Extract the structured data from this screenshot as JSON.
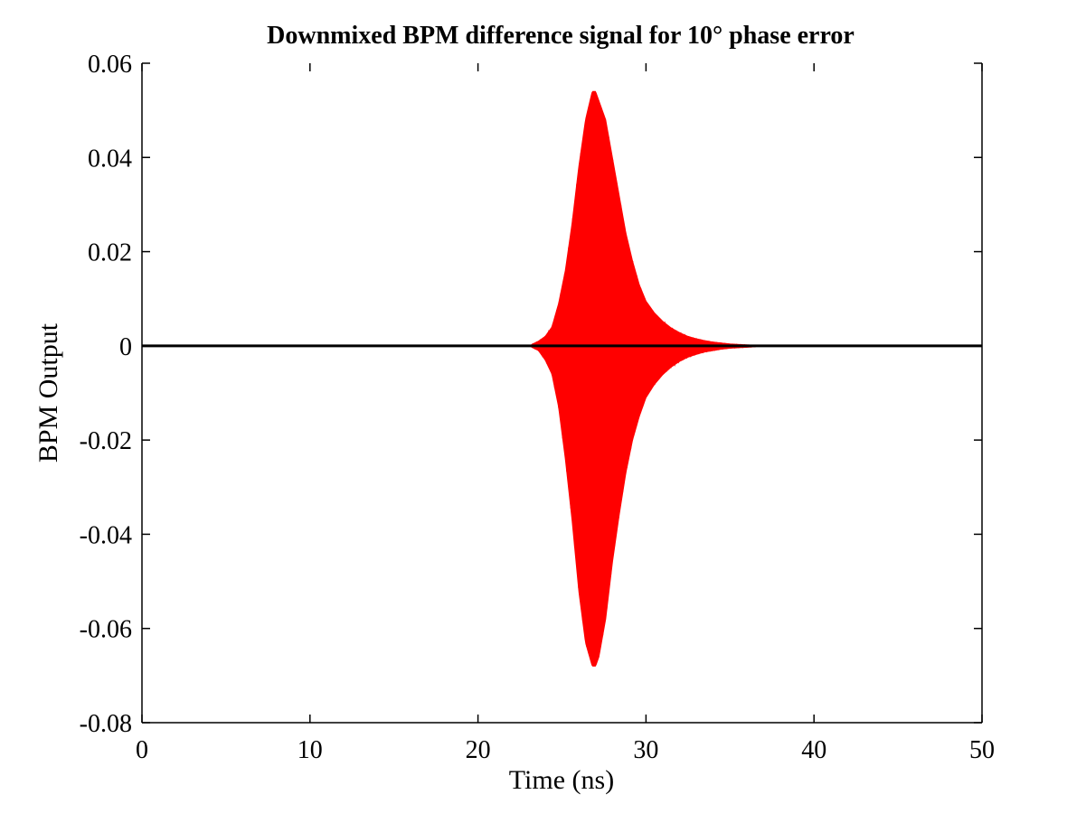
{
  "chart_data": {
    "type": "line",
    "title": "Downmixed BPM difference signal for 10° phase error",
    "xlabel": "Time (ns)",
    "ylabel": "BPM Output",
    "xlim": [
      0,
      50
    ],
    "ylim": [
      -0.08,
      0.06
    ],
    "xticks": [
      0,
      10,
      20,
      30,
      40,
      50
    ],
    "yticks": [
      0.06,
      0.04,
      0.02,
      0,
      -0.02,
      -0.04,
      -0.06,
      -0.08
    ],
    "xtick_labels": [
      "0",
      "10",
      "20",
      "30",
      "40",
      "50"
    ],
    "ytick_labels": [
      "0.06",
      "0.04",
      "0.02",
      "0",
      "-0.02",
      "-0.04",
      "-0.06",
      "-0.08"
    ],
    "grid": false,
    "series": [
      {
        "color": "#ff0000",
        "style": "oscillating signal envelope",
        "x": [
          23.2,
          23.6,
          24.0,
          24.4,
          24.8,
          25.2,
          25.6,
          26.0,
          26.4,
          26.8,
          27.0,
          27.2,
          27.6,
          28.0,
          28.4,
          28.8,
          29.2,
          29.6,
          30.0,
          30.5,
          31.0,
          31.5,
          32.0,
          32.5,
          33.0,
          33.5,
          34.0,
          34.5,
          35.0,
          35.5,
          36.0,
          36.5
        ],
        "upper": [
          0.0003,
          0.001,
          0.002,
          0.004,
          0.009,
          0.016,
          0.026,
          0.038,
          0.048,
          0.054,
          0.054,
          0.052,
          0.048,
          0.04,
          0.032,
          0.024,
          0.018,
          0.013,
          0.0095,
          0.007,
          0.0052,
          0.0038,
          0.0028,
          0.002,
          0.0015,
          0.0011,
          0.0008,
          0.0006,
          0.0004,
          0.0003,
          0.0002,
          0.0001
        ],
        "lower": [
          -0.0003,
          -0.001,
          -0.003,
          -0.006,
          -0.013,
          -0.024,
          -0.037,
          -0.052,
          -0.063,
          -0.068,
          -0.068,
          -0.066,
          -0.058,
          -0.046,
          -0.036,
          -0.027,
          -0.02,
          -0.015,
          -0.011,
          -0.0082,
          -0.0061,
          -0.0045,
          -0.0033,
          -0.0024,
          -0.0018,
          -0.0013,
          -0.001,
          -0.0007,
          -0.0005,
          -0.0004,
          -0.0003,
          -0.0002
        ]
      },
      {
        "color": "#000000",
        "style": "zero baseline",
        "x": [
          0,
          50
        ],
        "values": [
          0,
          0
        ]
      }
    ]
  }
}
